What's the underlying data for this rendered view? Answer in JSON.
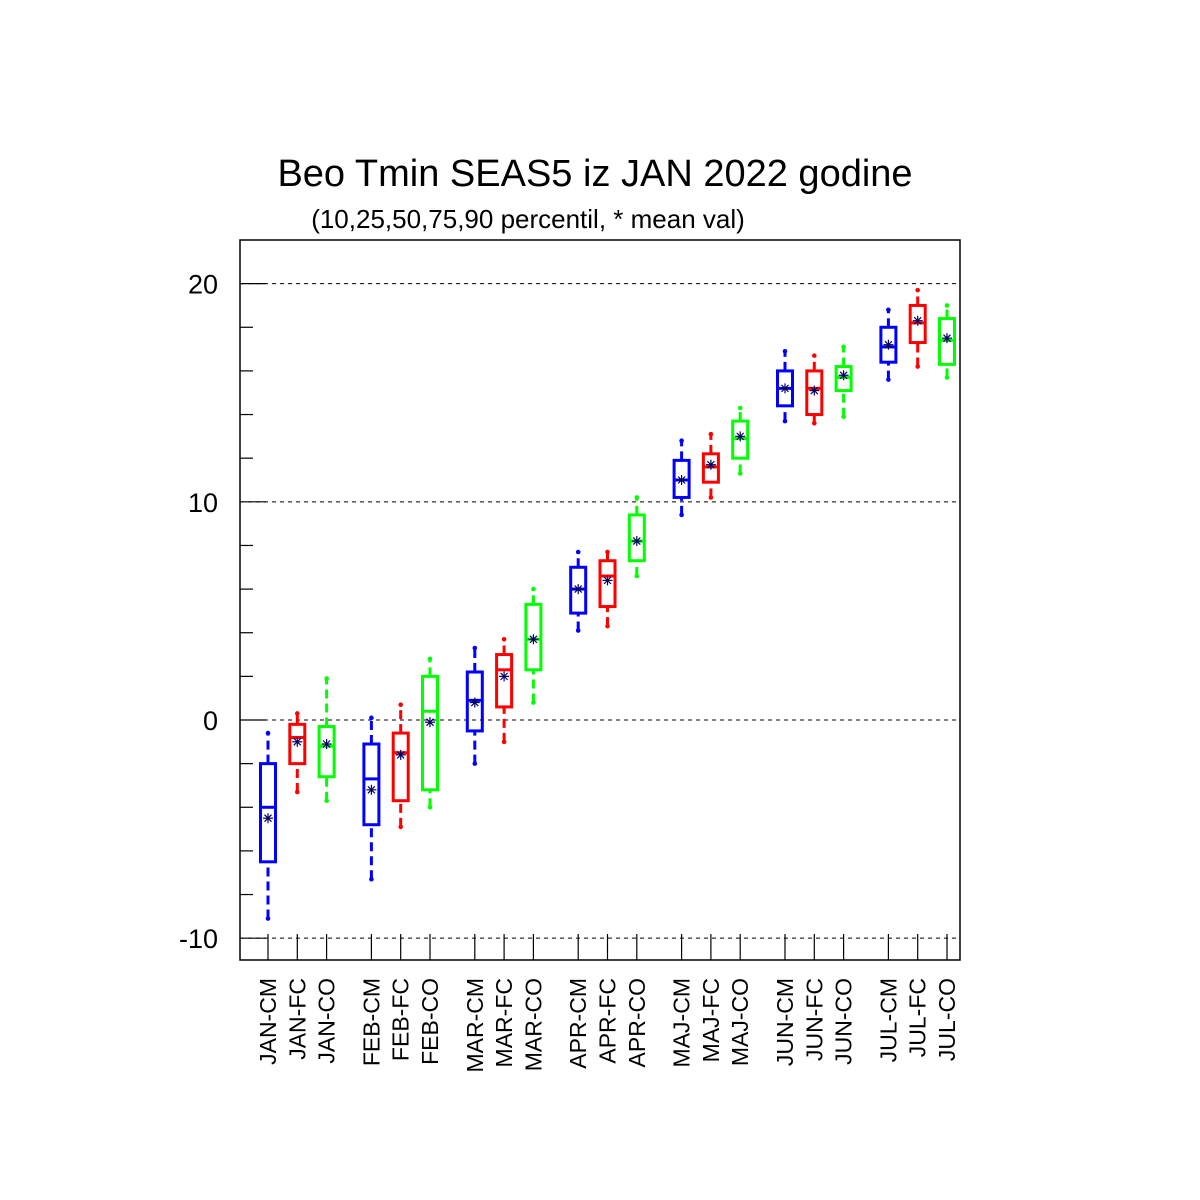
{
  "chart_data": {
    "type": "boxplot",
    "title": "Beo Tmin SEAS5 iz JAN 2022 godine",
    "subtitle": "(10,25,50,75,90 percentil, * mean val)",
    "ylim": [
      -11,
      22
    ],
    "yticks": [
      -10,
      0,
      10,
      20
    ],
    "yminor": [
      -8,
      -6,
      -4,
      -2,
      2,
      4,
      6,
      8,
      12,
      14,
      16,
      18
    ],
    "grid_lines": [
      -10,
      0,
      10,
      20
    ],
    "colors": {
      "CM": "#0000ff",
      "FC": "#ff0000",
      "CO": "#00ff00",
      "mean": "#000066"
    },
    "categories": [
      "JAN-CM",
      "JAN-FC",
      "JAN-CO",
      "FEB-CM",
      "FEB-FC",
      "FEB-CO",
      "MAR-CM",
      "MAR-FC",
      "MAR-CO",
      "APR-CM",
      "APR-FC",
      "APR-CO",
      "MAJ-CM",
      "MAJ-FC",
      "MAJ-CO",
      "JUN-CM",
      "JUN-FC",
      "JUN-CO",
      "JUL-CM",
      "JUL-FC",
      "JUL-CO"
    ],
    "series": [
      {
        "group": "CM",
        "p10": -9.1,
        "p25": -6.5,
        "p50": -4.0,
        "p75": -2.0,
        "p90": -0.6,
        "mean": -4.5
      },
      {
        "group": "FC",
        "p10": -3.3,
        "p25": -2.0,
        "p50": -0.8,
        "p75": -0.2,
        "p90": 0.3,
        "mean": -1.0
      },
      {
        "group": "CO",
        "p10": -3.7,
        "p25": -2.6,
        "p50": -1.2,
        "p75": -0.3,
        "p90": 1.9,
        "mean": -1.1
      },
      {
        "group": "CM",
        "p10": -7.3,
        "p25": -4.8,
        "p50": -2.7,
        "p75": -1.1,
        "p90": 0.1,
        "mean": -3.2
      },
      {
        "group": "FC",
        "p10": -4.9,
        "p25": -3.7,
        "p50": -1.5,
        "p75": -0.6,
        "p90": 0.7,
        "mean": -1.6
      },
      {
        "group": "CO",
        "p10": -4.0,
        "p25": -3.2,
        "p50": 0.4,
        "p75": 2.0,
        "p90": 2.8,
        "mean": -0.1
      },
      {
        "group": "CM",
        "p10": -2.0,
        "p25": -0.5,
        "p50": 0.9,
        "p75": 2.2,
        "p90": 3.3,
        "mean": 0.8
      },
      {
        "group": "FC",
        "p10": -1.0,
        "p25": 0.6,
        "p50": 2.3,
        "p75": 3.0,
        "p90": 3.7,
        "mean": 2.0
      },
      {
        "group": "CO",
        "p10": 0.8,
        "p25": 2.3,
        "p50": 3.7,
        "p75": 5.3,
        "p90": 6.0,
        "mean": 3.7
      },
      {
        "group": "CM",
        "p10": 4.1,
        "p25": 4.9,
        "p50": 6.0,
        "p75": 7.0,
        "p90": 7.7,
        "mean": 6.0
      },
      {
        "group": "FC",
        "p10": 4.3,
        "p25": 5.2,
        "p50": 6.6,
        "p75": 7.3,
        "p90": 7.7,
        "mean": 6.4
      },
      {
        "group": "CO",
        "p10": 6.6,
        "p25": 7.3,
        "p50": 8.2,
        "p75": 9.4,
        "p90": 10.2,
        "mean": 8.2
      },
      {
        "group": "CM",
        "p10": 9.4,
        "p25": 10.2,
        "p50": 11.0,
        "p75": 11.9,
        "p90": 12.8,
        "mean": 11.0
      },
      {
        "group": "FC",
        "p10": 10.2,
        "p25": 10.9,
        "p50": 11.6,
        "p75": 12.2,
        "p90": 13.1,
        "mean": 11.7
      },
      {
        "group": "CO",
        "p10": 11.3,
        "p25": 12.0,
        "p50": 12.9,
        "p75": 13.7,
        "p90": 14.3,
        "mean": 13.0
      },
      {
        "group": "CM",
        "p10": 13.7,
        "p25": 14.4,
        "p50": 15.2,
        "p75": 16.0,
        "p90": 16.9,
        "mean": 15.2
      },
      {
        "group": "FC",
        "p10": 13.6,
        "p25": 14.0,
        "p50": 15.2,
        "p75": 16.0,
        "p90": 16.7,
        "mean": 15.1
      },
      {
        "group": "CO",
        "p10": 13.9,
        "p25": 15.1,
        "p50": 15.7,
        "p75": 16.2,
        "p90": 17.1,
        "mean": 15.8
      },
      {
        "group": "CM",
        "p10": 15.6,
        "p25": 16.4,
        "p50": 17.1,
        "p75": 18.0,
        "p90": 18.8,
        "mean": 17.2
      },
      {
        "group": "FC",
        "p10": 16.2,
        "p25": 17.3,
        "p50": 18.2,
        "p75": 19.0,
        "p90": 19.7,
        "mean": 18.3
      },
      {
        "group": "CO",
        "p10": 15.7,
        "p25": 16.3,
        "p50": 17.4,
        "p75": 18.4,
        "p90": 19.0,
        "mean": 17.5
      }
    ]
  }
}
